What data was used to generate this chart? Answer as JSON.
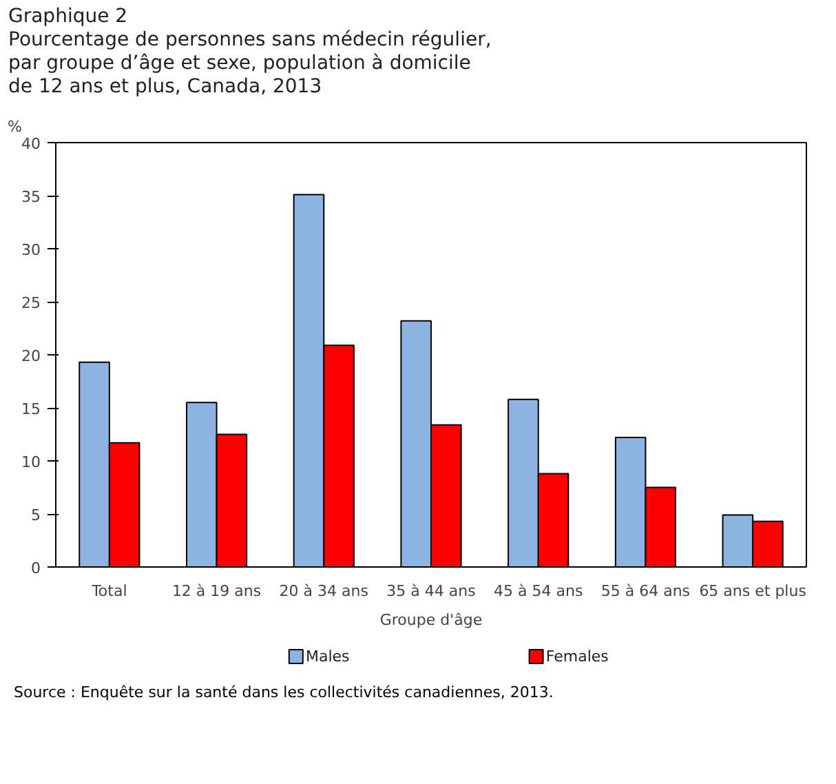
{
  "chart_data": {
    "type": "bar",
    "title": "Graphique 2",
    "subtitle": "Pourcentage de personnes sans médecin régulier,\npar groupe d’âge et sexe, population à domicile\nde 12 ans et plus, Canada, 2013",
    "ylabel": "%",
    "xlabel": "Groupe d'âge",
    "categories": [
      "Total",
      "12 à 19 ans",
      "20 à 34 ans",
      "35 à 44 ans",
      "45 à 54 ans",
      "55 à 64 ans",
      "65 ans et plus"
    ],
    "series": [
      {
        "name": "Males",
        "color": "#8db3e2",
        "values": [
          19.3,
          15.5,
          35.1,
          23.2,
          15.8,
          12.2,
          4.9
        ]
      },
      {
        "name": "Females",
        "color": "#ff0000",
        "values": [
          11.7,
          12.5,
          20.9,
          13.4,
          8.8,
          7.5,
          4.3
        ]
      }
    ],
    "ylim": [
      0,
      40
    ],
    "yticks": [
      0,
      5,
      10,
      15,
      20,
      25,
      30,
      35,
      40
    ],
    "grid": false,
    "legend": "bottom",
    "annotations": [
      "Source : Enquête sur la santé dans les collectivités canadiennes, 2013."
    ]
  }
}
